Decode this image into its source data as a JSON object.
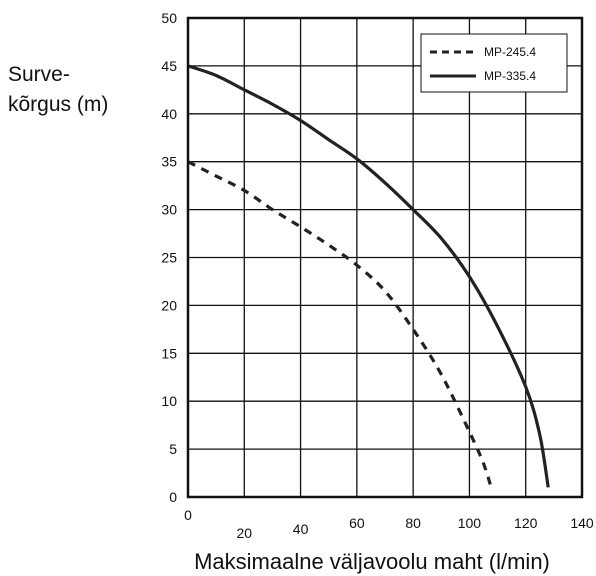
{
  "chart_data": {
    "type": "line",
    "title": "",
    "ylabel": [
      "Surve-",
      "kõrgus (m)"
    ],
    "xlabel": "Maksimaalne väljavoolu maht (l/min)",
    "xlim": [
      0,
      140
    ],
    "ylim": [
      0,
      50
    ],
    "xticks": [
      "0",
      "20",
      "40",
      "60",
      "80",
      "100",
      "120",
      "140"
    ],
    "yticks": [
      "0",
      "5",
      "10",
      "15",
      "20",
      "25",
      "30",
      "35",
      "40",
      "45",
      "50"
    ],
    "grid": true,
    "legend_position": "top-right",
    "series": [
      {
        "name": "MP-245.4",
        "style": "dashed",
        "color": "#222222",
        "x": [
          0,
          10,
          20,
          30,
          40,
          50,
          60,
          70,
          80,
          90,
          100,
          105,
          108
        ],
        "y": [
          35,
          33.5,
          32,
          30,
          28.2,
          26.3,
          24.2,
          21.5,
          17.5,
          12.8,
          6.8,
          3.5,
          0.7
        ]
      },
      {
        "name": "MP-335.4",
        "style": "solid",
        "color": "#222222",
        "x": [
          0,
          10,
          20,
          30,
          40,
          50,
          60,
          70,
          80,
          90,
          100,
          110,
          120,
          125,
          128
        ],
        "y": [
          45,
          44,
          42.5,
          41,
          39.3,
          37.3,
          35.3,
          32.8,
          30,
          27,
          23,
          17.8,
          11.5,
          6.5,
          1
        ]
      }
    ]
  }
}
